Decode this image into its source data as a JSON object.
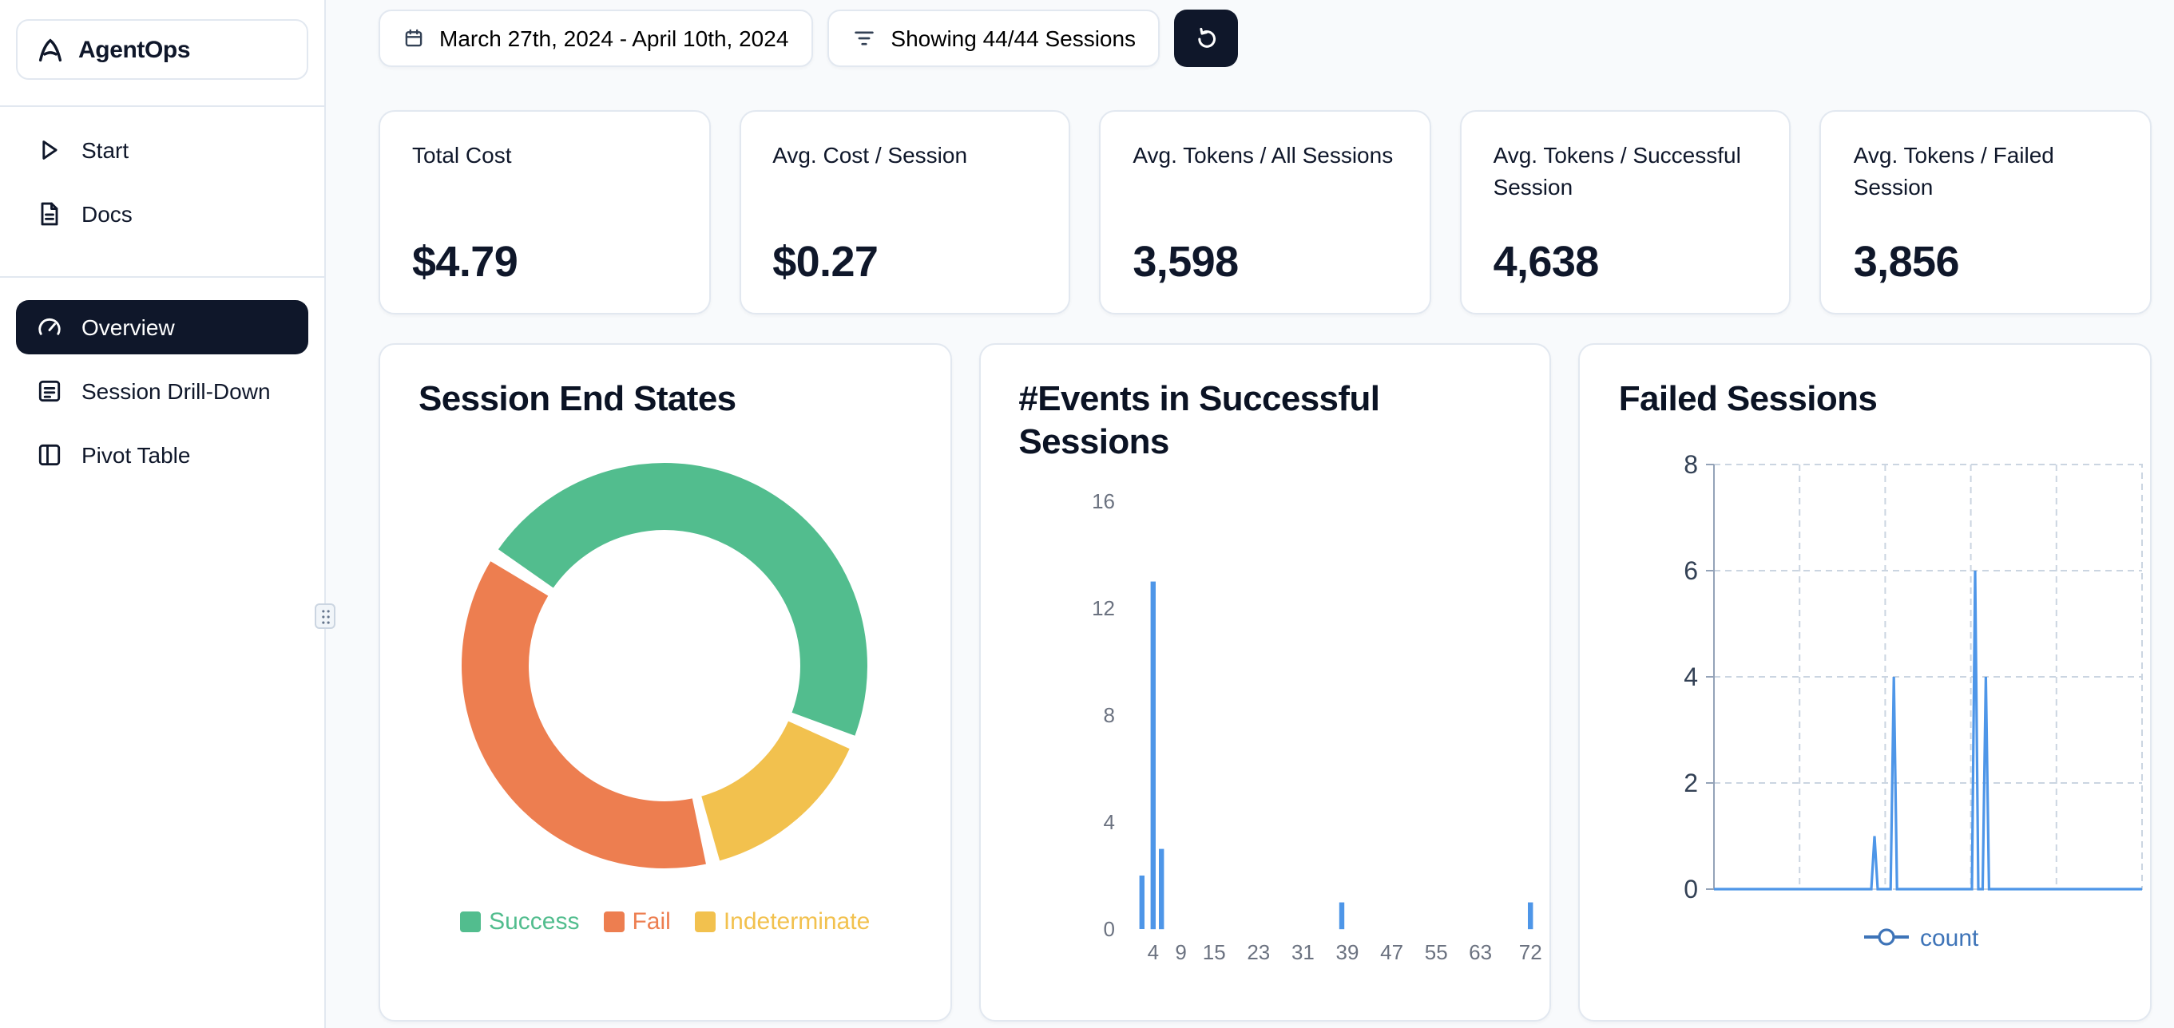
{
  "app": {
    "name": "AgentOps"
  },
  "sidebar": {
    "items": [
      {
        "label": "Start",
        "icon": "play-icon",
        "active": false
      },
      {
        "label": "Docs",
        "icon": "docs-icon",
        "active": false
      },
      {
        "label": "Overview",
        "icon": "gauge-icon",
        "active": true
      },
      {
        "label": "Session Drill-Down",
        "icon": "report-icon",
        "active": false
      },
      {
        "label": "Pivot Table",
        "icon": "columns-icon",
        "active": false
      }
    ]
  },
  "toolbar": {
    "date_range": "March 27th, 2024 - April 10th, 2024",
    "date_icon": "calendar-icon",
    "sessions_filter": "Showing 44/44 Sessions",
    "filter_icon": "filter-icon",
    "refresh_icon": "refresh-icon"
  },
  "stats": [
    {
      "label": "Total Cost",
      "value": "$4.79"
    },
    {
      "label": "Avg. Cost / Session",
      "value": "$0.27"
    },
    {
      "label": "Avg. Tokens / All Sessions",
      "value": "3,598"
    },
    {
      "label": "Avg. Tokens / Successful Session",
      "value": "4,638"
    },
    {
      "label": "Avg. Tokens / Failed Session",
      "value": "3,856"
    }
  ],
  "chart_data": [
    {
      "type": "pie",
      "title": "Session End States",
      "donut": true,
      "start_angle_deg": -57,
      "slices": [
        {
          "label": "Success",
          "value": 47,
          "color": "#52BD8E"
        },
        {
          "label": "Indeterminate",
          "value": 15,
          "color": "#F2C14E"
        },
        {
          "label": "Fail",
          "value": 38,
          "color": "#ED7E50"
        }
      ],
      "legend": [
        {
          "label": "Success",
          "color": "#52BD8E"
        },
        {
          "label": "Fail",
          "color": "#ED7E50"
        },
        {
          "label": "Indeterminate",
          "color": "#F2C14E"
        }
      ],
      "legend_position": "bottom"
    },
    {
      "type": "bar",
      "title": "#Events in Successful Sessions",
      "xlabel": "",
      "ylabel": "",
      "bars": [
        {
          "x": 2,
          "count": 2
        },
        {
          "x": 4,
          "count": 13
        },
        {
          "x": 5.5,
          "count": 3
        },
        {
          "x": 38,
          "count": 1
        },
        {
          "x": 72,
          "count": 1
        }
      ],
      "xticks": [
        4,
        9,
        15,
        23,
        31,
        39,
        47,
        55,
        63,
        72
      ],
      "yticks": [
        0,
        4,
        8,
        12,
        16
      ],
      "xlim": [
        0,
        76
      ],
      "ylim": [
        0,
        16
      ],
      "bar_color": "#4E96E8",
      "grid": false
    },
    {
      "type": "line",
      "title": "Failed Sessions",
      "series": [
        {
          "name": "count",
          "color": "#4E96E8",
          "spikes": [
            {
              "pos": 0.375,
              "value": 1
            },
            {
              "pos": 0.42,
              "value": 4
            },
            {
              "pos": 0.61,
              "value": 6
            },
            {
              "pos": 0.635,
              "value": 4
            }
          ],
          "baseline": 0
        }
      ],
      "yticks": [
        0,
        2,
        4,
        6,
        8
      ],
      "ylim": [
        0,
        8
      ],
      "grid": "dashed",
      "legend": [
        {
          "label": "count",
          "color": "#3E74B8"
        }
      ],
      "legend_position": "bottom"
    }
  ],
  "colors": {
    "accent_dark": "#0f172a",
    "background": "#f8fafc",
    "card_border": "#e2e8f0",
    "bar_blue": "#4E96E8"
  }
}
